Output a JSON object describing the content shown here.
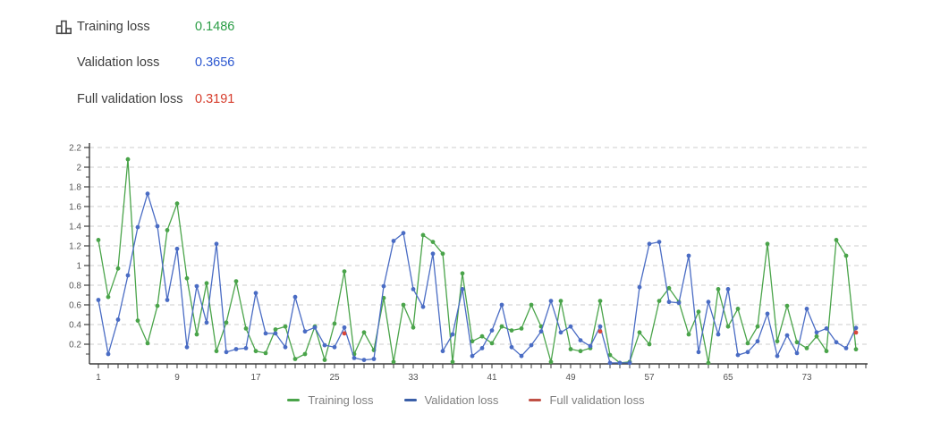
{
  "metrics_panel": {
    "icon": "bar-chart-icon",
    "rows": [
      {
        "label": "Training loss",
        "value": "0.1486",
        "color": "#2a9d45"
      },
      {
        "label": "Validation loss",
        "value": "0.3656",
        "color": "#2b57d0"
      },
      {
        "label": "Full validation loss",
        "value": "0.3191",
        "color": "#d63b2a"
      }
    ]
  },
  "legend": {
    "position": "bottom",
    "items": [
      {
        "label": "Training loss",
        "color": "#4aa44a"
      },
      {
        "label": "Validation loss",
        "color": "#3a5fa8"
      },
      {
        "label": "Full validation loss",
        "color": "#c05045"
      }
    ]
  },
  "chart_data": {
    "type": "line",
    "title": "",
    "xlabel": "",
    "ylabel": "",
    "x_start": 1,
    "x_end": 78,
    "ylim": [
      0,
      2.3
    ],
    "grid": "horizontal-dashed",
    "y_tick_labels": [
      "2.2",
      "2",
      "1.8",
      "1.6",
      "1.4",
      "1.2",
      "1",
      "0.8",
      "0.6",
      "0.4",
      "0.2"
    ],
    "x_tick_labels": [
      "1",
      "9",
      "17",
      "25",
      "33",
      "41",
      "49",
      "57",
      "65",
      "73"
    ],
    "x_tick_step": 8,
    "colors": {
      "training": "#4aa44a",
      "validation": "#4a6cc4",
      "full_validation": "#d8473a",
      "grid": "#cccccc",
      "axis": "#3c3c3c",
      "tick_label": "#555555"
    },
    "series": [
      {
        "name": "Training loss",
        "values": [
          1.26,
          0.68,
          0.97,
          2.08,
          0.44,
          0.21,
          0.59,
          1.36,
          1.63,
          0.87,
          0.3,
          0.82,
          0.13,
          0.42,
          0.84,
          0.36,
          0.13,
          0.11,
          0.35,
          0.38,
          0.05,
          0.1,
          0.38,
          0.04,
          0.41,
          0.94,
          0.1,
          0.32,
          0.14,
          0.67,
          0.02,
          0.6,
          0.37,
          1.31,
          1.24,
          1.12,
          0.02,
          0.92,
          0.23,
          0.28,
          0.21,
          0.38,
          0.34,
          0.36,
          0.6,
          0.38,
          0.02,
          0.64,
          0.15,
          0.13,
          0.16,
          0.64,
          0.09,
          0.01,
          0.02,
          0.32,
          0.2,
          0.64,
          0.77,
          0.63,
          0.3,
          0.53,
          0.01,
          0.76,
          0.38,
          0.56,
          0.21,
          0.38,
          1.22,
          0.23,
          0.59,
          0.22,
          0.16,
          0.28,
          0.13,
          1.26,
          1.1,
          0.1486
        ]
      },
      {
        "name": "Validation loss",
        "values": [
          0.65,
          0.1,
          0.45,
          0.9,
          1.39,
          1.73,
          1.4,
          0.65,
          1.17,
          0.17,
          0.79,
          0.42,
          1.22,
          0.12,
          0.15,
          0.16,
          0.72,
          0.31,
          0.31,
          0.17,
          0.68,
          0.33,
          0.37,
          0.19,
          0.17,
          0.37,
          0.06,
          0.04,
          0.05,
          0.79,
          1.25,
          1.33,
          0.76,
          0.58,
          1.12,
          0.13,
          0.3,
          0.76,
          0.08,
          0.16,
          0.34,
          0.6,
          0.17,
          0.08,
          0.19,
          0.33,
          0.64,
          0.32,
          0.38,
          0.24,
          0.18,
          0.38,
          0.01,
          0.01,
          0.01,
          0.78,
          1.22,
          1.24,
          0.63,
          0.62,
          1.1,
          0.12,
          0.63,
          0.3,
          0.76,
          0.09,
          0.12,
          0.23,
          0.51,
          0.08,
          0.29,
          0.11,
          0.56,
          0.32,
          0.36,
          0.22,
          0.16,
          0.3656
        ]
      },
      {
        "name": "Full validation loss",
        "points": [
          {
            "x": 26,
            "y": 0.31
          },
          {
            "x": 52,
            "y": 0.33
          },
          {
            "x": 78,
            "y": 0.3191
          }
        ]
      }
    ]
  }
}
